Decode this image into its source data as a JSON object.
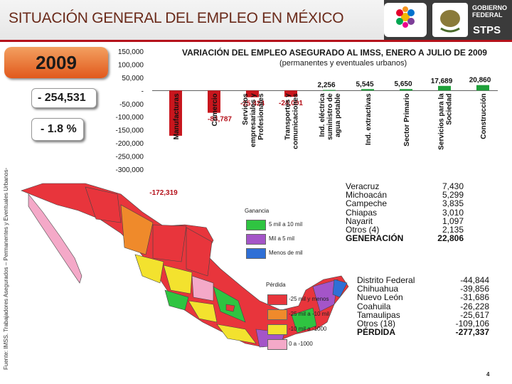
{
  "page": {
    "title": "SITUACIÓN GENERAL DEL EMPLEO EN MÉXICO",
    "page_number": "4"
  },
  "header": {
    "gov_line1": "GOBIERNO",
    "gov_line2": "FEDERAL",
    "stps": "STPS"
  },
  "summary": {
    "year": "2009",
    "jobs_change": "- 254,531",
    "pct_change": "- 1.8 %"
  },
  "chart_data": {
    "type": "bar",
    "title": "VARIACIÓN DEL EMPLEO ASEGURADO AL IMSS, ENERO A JULIO DE 2009",
    "subtitle": "(permanentes y eventuales urbanos)",
    "categories": [
      "Manufacturas",
      "Comercio",
      "Servicios empresariales y Profesionales",
      "Transportes y comunicaciones",
      "Ind. eléctrica suministro de agua potable",
      "Ind. extractivas",
      "Sector Primario",
      "Servicios para la Sociedad",
      "Construcción"
    ],
    "values": [
      -172319,
      -84787,
      -25424,
      -24001,
      2256,
      5545,
      5650,
      17689,
      20860
    ],
    "value_labels": [
      "-172,319",
      "-84,787",
      "-25,424",
      "-24,001",
      "2,256",
      "5,545",
      "5,650",
      "17,689",
      "20,860"
    ],
    "ylim": [
      -300000,
      150000
    ],
    "yticks": [
      "150,000",
      "100,000",
      "50,000",
      "-",
      "-50,000",
      "-100,000",
      "-150,000",
      "-200,000",
      "-250,000",
      "-300,000"
    ],
    "colors": {
      "negative": "#c8161d",
      "positive": "#1fa03a"
    }
  },
  "source": "Fuente: IMSS. Trabajadores Asegurados – Permanentes y Eventuales Urbanos-",
  "map_legend": {
    "gain_title": "Ganancia",
    "gain_items": [
      {
        "label": "5 mil a 10 mil",
        "color": "#2fc441"
      },
      {
        "label": "Mil a 5 mil",
        "color": "#a455c8"
      },
      {
        "label": "Menos de mil",
        "color": "#2f6fd6"
      }
    ],
    "loss_title": "Pérdida",
    "loss_items": [
      {
        "label": "-25 mil y menos",
        "color": "#e8353c"
      },
      {
        "label": "-25 mil a -10 mil",
        "color": "#ef8a2b"
      },
      {
        "label": "-10 mil a -1000",
        "color": "#f3e22e"
      },
      {
        "label": "0 a -1000",
        "color": "#f4a9c8"
      }
    ]
  },
  "gains_table": {
    "rows": [
      {
        "state": "Veracruz",
        "value": "7,430"
      },
      {
        "state": "Michoacán",
        "value": "5,299"
      },
      {
        "state": "Campeche",
        "value": "3,835"
      },
      {
        "state": "Chiapas",
        "value": "3,010"
      },
      {
        "state": "Nayarit",
        "value": "1,097"
      },
      {
        "state": "Otros (4)",
        "value": "2,135"
      }
    ],
    "total_label": "GENERACIÓN",
    "total_value": "22,806"
  },
  "losses_table": {
    "rows": [
      {
        "state": "Distrito Federal",
        "value": "-44,844"
      },
      {
        "state": "Chihuahua",
        "value": "-39,856"
      },
      {
        "state": "Nuevo León",
        "value": "-31,686"
      },
      {
        "state": "Coahuila",
        "value": "-26,228"
      },
      {
        "state": "Tamaulipas",
        "value": "-25,617"
      },
      {
        "state": "Otros (18)",
        "value": "-109,106"
      }
    ],
    "total_label": "PÉRDIDA",
    "total_value": "-277,337"
  }
}
